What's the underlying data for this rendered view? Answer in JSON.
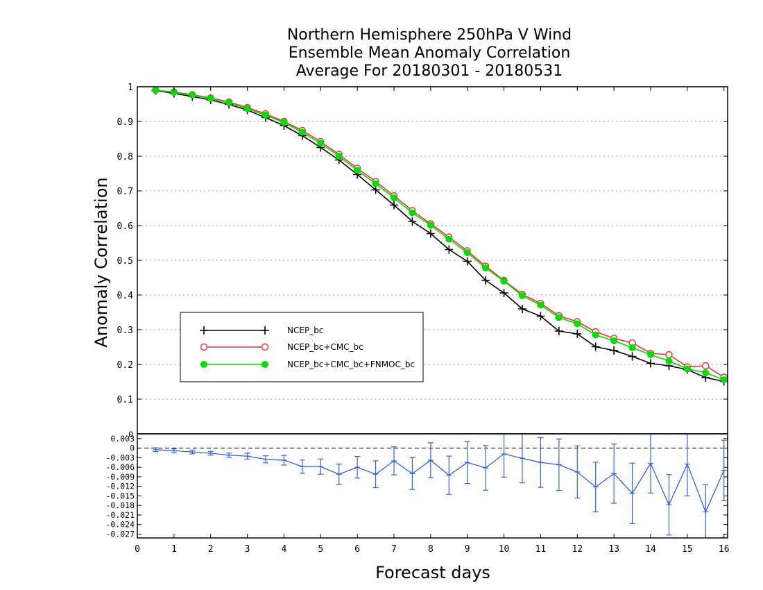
{
  "chart_data": [
    {
      "type": "line",
      "title_lines": [
        "Northern Hemisphere 250hPa V Wind",
        "Ensemble Mean Anomaly Correlation",
        "Average For 20180301 - 20180531"
      ],
      "xlabel": "Forecast days",
      "ylabel": "Anomaly Correlation",
      "xlim": [
        0,
        16.1
      ],
      "ylim": [
        0,
        1
      ],
      "x_ticks": [
        0,
        1,
        2,
        3,
        4,
        5,
        6,
        7,
        8,
        9,
        10,
        11,
        12,
        13,
        14,
        15,
        16
      ],
      "y_ticks": [
        0.1,
        0.2,
        0.3,
        0.4,
        0.5,
        0.6,
        0.7,
        0.8,
        0.9,
        1
      ],
      "y_tick_labels": [
        "0.1",
        "0.2",
        "0.3",
        "0.4",
        "0.5",
        "0.6",
        "0.7",
        "0.8",
        "0.9",
        "1"
      ],
      "grid": true,
      "legend_position": "left-lower-middle",
      "x": [
        0.5,
        1,
        1.5,
        2,
        2.5,
        3,
        3.5,
        4,
        4.5,
        5,
        5.5,
        6,
        6.5,
        7,
        7.5,
        8,
        8.5,
        9,
        9.5,
        10,
        10.5,
        11,
        11.5,
        12,
        12.5,
        13,
        13.5,
        14,
        14.5,
        15,
        15.5,
        16
      ],
      "series": [
        {
          "name": "NCEP_bc",
          "color": "#000000",
          "marker": "plus",
          "values": [
            0.989,
            0.981,
            0.972,
            0.962,
            0.949,
            0.933,
            0.911,
            0.888,
            0.859,
            0.825,
            0.789,
            0.747,
            0.703,
            0.659,
            0.612,
            0.577,
            0.531,
            0.497,
            0.442,
            0.406,
            0.36,
            0.339,
            0.296,
            0.288,
            0.251,
            0.24,
            0.223,
            0.203,
            0.196,
            0.185,
            0.162,
            0.151
          ]
        },
        {
          "name": "NCEP_bc+CMC_bc",
          "color": "#ee3333",
          "marker": "open-circle",
          "values": [
            0.99,
            0.985,
            0.977,
            0.968,
            0.956,
            0.94,
            0.922,
            0.9,
            0.874,
            0.842,
            0.805,
            0.765,
            0.727,
            0.686,
            0.643,
            0.605,
            0.567,
            0.527,
            0.483,
            0.442,
            0.402,
            0.376,
            0.34,
            0.323,
            0.294,
            0.275,
            0.262,
            0.232,
            0.228,
            0.193,
            0.196,
            0.163
          ]
        },
        {
          "name": "NCEP_bc+CMC_bc+FNMOC_bc",
          "color": "#00dd00",
          "marker": "filled-circle",
          "values": [
            0.99,
            0.984,
            0.976,
            0.966,
            0.954,
            0.937,
            0.918,
            0.897,
            0.869,
            0.837,
            0.8,
            0.759,
            0.721,
            0.68,
            0.637,
            0.601,
            0.561,
            0.522,
            0.478,
            0.44,
            0.398,
            0.371,
            0.335,
            0.317,
            0.285,
            0.268,
            0.248,
            0.228,
            0.21,
            0.187,
            0.176,
            0.156
          ]
        }
      ]
    },
    {
      "type": "line",
      "ylim": [
        -0.0282,
        0.0045
      ],
      "y_ticks": [
        0.003,
        0,
        -0.003,
        -0.006,
        -0.009,
        -0.012,
        -0.015,
        -0.018,
        -0.021,
        -0.024,
        -0.027
      ],
      "y_tick_labels": [
        "0.003",
        "0",
        "-0.003",
        "-0.006",
        "-0.009",
        "-0.012",
        "-0.015",
        "-0.018",
        "-0.021",
        "-0.024",
        "-0.027"
      ],
      "top_label": "0",
      "zero_line": true,
      "x": [
        0.5,
        1,
        1.5,
        2,
        2.5,
        3,
        3.5,
        4,
        4.5,
        5,
        5.5,
        6,
        6.5,
        7,
        7.5,
        8,
        8.5,
        9,
        9.5,
        10,
        10.5,
        11,
        11.5,
        12,
        12.5,
        13,
        13.5,
        14,
        14.5,
        15,
        15.5,
        16
      ],
      "series": [
        {
          "color": "#3060e0",
          "values": [
            -0.0005,
            -0.0008,
            -0.0012,
            -0.0016,
            -0.0022,
            -0.0025,
            -0.0035,
            -0.0038,
            -0.0058,
            -0.0058,
            -0.0082,
            -0.006,
            -0.0082,
            -0.004,
            -0.008,
            -0.0038,
            -0.0085,
            -0.0045,
            -0.0062,
            -0.0018,
            -0.0032,
            -0.0045,
            -0.0052,
            -0.0075,
            -0.0122,
            -0.008,
            -0.0142,
            -0.0048,
            -0.0178,
            -0.005,
            -0.02,
            -0.007
          ],
          "errors": [
            0.0006,
            0.0006,
            0.0006,
            0.0006,
            0.0007,
            0.0009,
            0.0011,
            0.0015,
            0.0021,
            0.0024,
            0.0032,
            0.0034,
            0.0042,
            0.0044,
            0.005,
            0.0055,
            0.006,
            0.0066,
            0.007,
            0.0073,
            0.0077,
            0.0078,
            0.0081,
            0.0082,
            0.0078,
            0.0093,
            0.0095,
            0.0093,
            0.0095,
            0.01,
            0.0085,
            0.0095
          ]
        }
      ]
    }
  ],
  "legend": {
    "entries": [
      "NCEP_bc",
      "NCEP_bc+CMC_bc",
      "NCEP_bc+CMC_bc+FNMOC_bc"
    ]
  }
}
